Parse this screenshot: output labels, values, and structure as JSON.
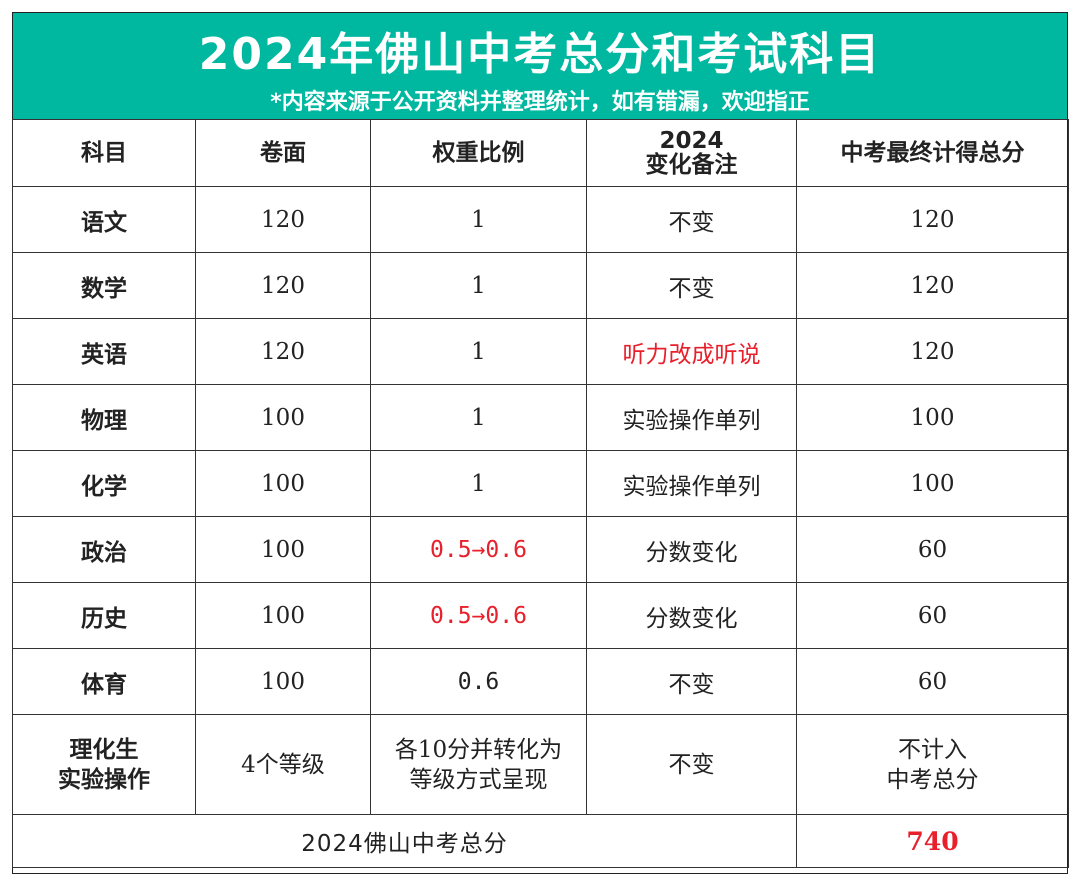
{
  "header": {
    "title": "2024年佛山中考总分和考试科目",
    "subtitle": "*内容来源于公开资料并整理统计，如有错漏，欢迎指正"
  },
  "table": {
    "columns": [
      "科目",
      "卷面",
      "权重比例",
      "2024\n变化备注",
      "中考最终计得总分"
    ],
    "rows": [
      {
        "subject": "语文",
        "paper": "120",
        "weight": "1",
        "note": "不变",
        "final": "120"
      },
      {
        "subject": "数学",
        "paper": "120",
        "weight": "1",
        "note": "不变",
        "final": "120"
      },
      {
        "subject": "英语",
        "paper": "120",
        "weight": "1",
        "note": "听力改成听说",
        "final": "120"
      },
      {
        "subject": "物理",
        "paper": "100",
        "weight": "1",
        "note": "实验操作单列",
        "final": "100"
      },
      {
        "subject": "化学",
        "paper": "100",
        "weight": "1",
        "note": "实验操作单列",
        "final": "100"
      },
      {
        "subject": "政治",
        "paper": "100",
        "weight": "0.5→0.6",
        "note": "分数变化",
        "final": "60"
      },
      {
        "subject": "历史",
        "paper": "100",
        "weight": "0.5→0.6",
        "note": "分数变化",
        "final": "60"
      },
      {
        "subject": "体育",
        "paper": "100",
        "weight": "0.6",
        "note": "不变",
        "final": "60"
      },
      {
        "subject": "理化生\n实验操作",
        "paper": "4个等级",
        "weight": "各10分并转化为\n等级方式呈现",
        "note": "不变",
        "final": "不计入\n中考总分"
      }
    ],
    "total_label": "2024佛山中考总分",
    "total_value": "740"
  },
  "colors": {
    "header_bg": "#00b8a0",
    "highlight_red": "#e8202c"
  }
}
